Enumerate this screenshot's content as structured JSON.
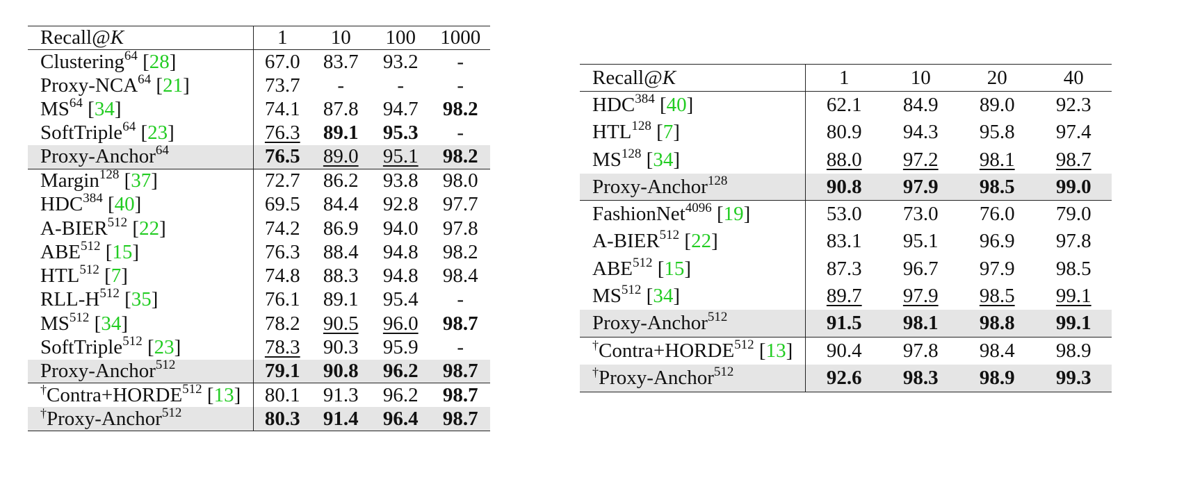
{
  "left_table": {
    "header": {
      "metric": "Recall@",
      "metric_var": "K",
      "ks": [
        "1",
        "10",
        "100",
        "1000"
      ]
    },
    "rows": [
      {
        "name": "Clustering",
        "sup": "64",
        "cite": "28",
        "values": [
          "67.0",
          "83.7",
          "93.2",
          "-"
        ],
        "bold": [
          false,
          false,
          false,
          false
        ],
        "underline": [
          false,
          false,
          false,
          false
        ]
      },
      {
        "name": "Proxy-NCA",
        "sup": "64",
        "cite": "21",
        "values": [
          "73.7",
          "-",
          "-",
          "-"
        ],
        "bold": [
          false,
          false,
          false,
          false
        ],
        "underline": [
          false,
          false,
          false,
          false
        ]
      },
      {
        "name": "MS",
        "sup": "64",
        "cite": "34",
        "values": [
          "74.1",
          "87.8",
          "94.7",
          "98.2"
        ],
        "bold": [
          false,
          false,
          false,
          true
        ],
        "underline": [
          false,
          false,
          false,
          false
        ]
      },
      {
        "name": "SoftTriple",
        "sup": "64",
        "cite": "23",
        "values": [
          "76.3",
          "89.1",
          "95.3",
          "-"
        ],
        "bold": [
          false,
          true,
          true,
          false
        ],
        "underline": [
          true,
          false,
          false,
          false
        ]
      },
      {
        "name": "Proxy-Anchor",
        "sup": "64",
        "cite": "",
        "values": [
          "76.5",
          "89.0",
          "95.1",
          "98.2"
        ],
        "bold": [
          true,
          false,
          false,
          true
        ],
        "underline": [
          false,
          true,
          true,
          false
        ],
        "highlight": true
      },
      {
        "name": "Margin",
        "sup": "128",
        "cite": "37",
        "values": [
          "72.7",
          "86.2",
          "93.8",
          "98.0"
        ],
        "bold": [
          false,
          false,
          false,
          false
        ],
        "underline": [
          false,
          false,
          false,
          false
        ],
        "group_start": true
      },
      {
        "name": "HDC",
        "sup": "384",
        "cite": "40",
        "values": [
          "69.5",
          "84.4",
          "92.8",
          "97.7"
        ],
        "bold": [
          false,
          false,
          false,
          false
        ],
        "underline": [
          false,
          false,
          false,
          false
        ]
      },
      {
        "name": "A-BIER",
        "sup": "512",
        "cite": "22",
        "values": [
          "74.2",
          "86.9",
          "94.0",
          "97.8"
        ],
        "bold": [
          false,
          false,
          false,
          false
        ],
        "underline": [
          false,
          false,
          false,
          false
        ]
      },
      {
        "name": "ABE",
        "sup": "512",
        "cite": "15",
        "values": [
          "76.3",
          "88.4",
          "94.8",
          "98.2"
        ],
        "bold": [
          false,
          false,
          false,
          false
        ],
        "underline": [
          false,
          false,
          false,
          false
        ]
      },
      {
        "name": "HTL",
        "sup": "512",
        "cite": "7",
        "values": [
          "74.8",
          "88.3",
          "94.8",
          "98.4"
        ],
        "bold": [
          false,
          false,
          false,
          false
        ],
        "underline": [
          false,
          false,
          false,
          false
        ]
      },
      {
        "name": "RLL-H",
        "sup": "512",
        "cite": "35",
        "values": [
          "76.1",
          "89.1",
          "95.4",
          "-"
        ],
        "bold": [
          false,
          false,
          false,
          false
        ],
        "underline": [
          false,
          false,
          false,
          false
        ]
      },
      {
        "name": "MS",
        "sup": "512",
        "cite": "34",
        "values": [
          "78.2",
          "90.5",
          "96.0",
          "98.7"
        ],
        "bold": [
          false,
          false,
          false,
          true
        ],
        "underline": [
          false,
          true,
          true,
          false
        ]
      },
      {
        "name": "SoftTriple",
        "sup": "512",
        "cite": "23",
        "values": [
          "78.3",
          "90.3",
          "95.9",
          "-"
        ],
        "bold": [
          false,
          false,
          false,
          false
        ],
        "underline": [
          true,
          false,
          false,
          false
        ]
      },
      {
        "name": "Proxy-Anchor",
        "sup": "512",
        "cite": "",
        "values": [
          "79.1",
          "90.8",
          "96.2",
          "98.7"
        ],
        "bold": [
          true,
          true,
          true,
          true
        ],
        "underline": [
          false,
          false,
          false,
          false
        ],
        "highlight": true
      },
      {
        "name": "Contra+HORDE",
        "dagger": "†",
        "sup": "512",
        "cite": "13",
        "values": [
          "80.1",
          "91.3",
          "96.2",
          "98.7"
        ],
        "bold": [
          false,
          false,
          false,
          true
        ],
        "underline": [
          false,
          false,
          false,
          false
        ],
        "group_start": true
      },
      {
        "name": "Proxy-Anchor",
        "dagger": "†",
        "sup": "512",
        "cite": "",
        "values": [
          "80.3",
          "91.4",
          "96.4",
          "98.7"
        ],
        "bold": [
          true,
          true,
          true,
          true
        ],
        "underline": [
          false,
          false,
          false,
          false
        ],
        "highlight": true
      }
    ]
  },
  "right_table": {
    "header": {
      "metric": "Recall@",
      "metric_var": "K",
      "ks": [
        "1",
        "10",
        "20",
        "40"
      ]
    },
    "rows": [
      {
        "name": "HDC",
        "sup": "384",
        "cite": "40",
        "values": [
          "62.1",
          "84.9",
          "89.0",
          "92.3"
        ],
        "bold": [
          false,
          false,
          false,
          false
        ],
        "underline": [
          false,
          false,
          false,
          false
        ]
      },
      {
        "name": "HTL",
        "sup": "128",
        "cite": "7",
        "values": [
          "80.9",
          "94.3",
          "95.8",
          "97.4"
        ],
        "bold": [
          false,
          false,
          false,
          false
        ],
        "underline": [
          false,
          false,
          false,
          false
        ]
      },
      {
        "name": "MS",
        "sup": "128",
        "cite": "34",
        "values": [
          "88.0",
          "97.2",
          "98.1",
          "98.7"
        ],
        "bold": [
          false,
          false,
          false,
          false
        ],
        "underline": [
          true,
          true,
          true,
          true
        ]
      },
      {
        "name": "Proxy-Anchor",
        "sup": "128",
        "cite": "",
        "values": [
          "90.8",
          "97.9",
          "98.5",
          "99.0"
        ],
        "bold": [
          true,
          true,
          true,
          true
        ],
        "underline": [
          false,
          false,
          false,
          false
        ],
        "highlight": true
      },
      {
        "name": "FashionNet",
        "sup": "4096",
        "cite": "19",
        "values": [
          "53.0",
          "73.0",
          "76.0",
          "79.0"
        ],
        "bold": [
          false,
          false,
          false,
          false
        ],
        "underline": [
          false,
          false,
          false,
          false
        ],
        "group_start": true
      },
      {
        "name": "A-BIER",
        "sup": "512",
        "cite": "22",
        "values": [
          "83.1",
          "95.1",
          "96.9",
          "97.8"
        ],
        "bold": [
          false,
          false,
          false,
          false
        ],
        "underline": [
          false,
          false,
          false,
          false
        ]
      },
      {
        "name": "ABE",
        "sup": "512",
        "cite": "15",
        "values": [
          "87.3",
          "96.7",
          "97.9",
          "98.5"
        ],
        "bold": [
          false,
          false,
          false,
          false
        ],
        "underline": [
          false,
          false,
          false,
          false
        ]
      },
      {
        "name": "MS",
        "sup": "512",
        "cite": "34",
        "values": [
          "89.7",
          "97.9",
          "98.5",
          "99.1"
        ],
        "bold": [
          false,
          false,
          false,
          false
        ],
        "underline": [
          true,
          true,
          true,
          true
        ]
      },
      {
        "name": "Proxy-Anchor",
        "sup": "512",
        "cite": "",
        "values": [
          "91.5",
          "98.1",
          "98.8",
          "99.1"
        ],
        "bold": [
          true,
          true,
          true,
          true
        ],
        "underline": [
          false,
          false,
          false,
          false
        ],
        "highlight": true
      },
      {
        "name": "Contra+HORDE",
        "dagger": "†",
        "sup": "512",
        "cite": "13",
        "values": [
          "90.4",
          "97.8",
          "98.4",
          "98.9"
        ],
        "bold": [
          false,
          false,
          false,
          false
        ],
        "underline": [
          false,
          false,
          false,
          false
        ],
        "group_start": true
      },
      {
        "name": "Proxy-Anchor",
        "dagger": "†",
        "sup": "512",
        "cite": "",
        "values": [
          "92.6",
          "98.3",
          "98.9",
          "99.3"
        ],
        "bold": [
          true,
          true,
          true,
          true
        ],
        "underline": [
          false,
          false,
          false,
          false
        ],
        "highlight": true
      }
    ]
  },
  "colors": {
    "citation": "#22cc22",
    "highlight_row": "#e5e5e5",
    "text": "#111111",
    "rule": "#222222"
  }
}
